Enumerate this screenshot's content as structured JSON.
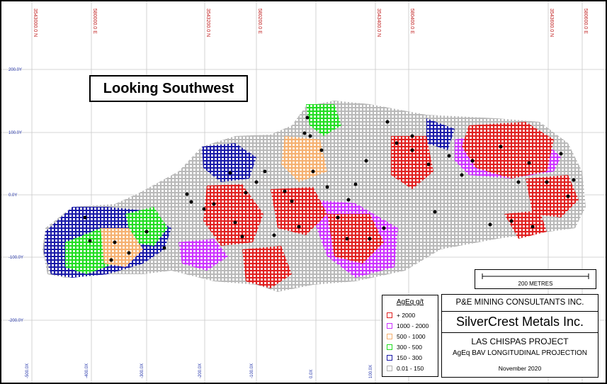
{
  "title_block": {
    "consultant": "P&E MINING CONSULTANTS INC.",
    "company": "SilverCrest Metals Inc.",
    "project": "LAS CHISPAS PROJECT",
    "projection": "AgEq BAV LONGITUDINAL PROJECTION",
    "date": "November 2020"
  },
  "view_label": "Looking Southwest",
  "scale_bar": {
    "label": "200 METRES",
    "length_m": 200
  },
  "legend": {
    "title": "AgEq g/t",
    "items": [
      {
        "label": "+ 2000",
        "color": "#e02020"
      },
      {
        "label": "1000 - 2000",
        "color": "#cc33ff"
      },
      {
        "label": "500 - 1000",
        "color": "#f5b070"
      },
      {
        "label": "300 - 500",
        "color": "#22dd22"
      },
      {
        "label": "150 - 300",
        "color": "#1a1aa8"
      },
      {
        "label": "0.01 - 150",
        "color": "#b0b0b0"
      }
    ]
  },
  "top_labels": [
    "3543000.0 N",
    "580000.0 E",
    "3543200.0 N",
    "580200.0 E",
    "3543400.0 N",
    "580400.0 E",
    "3543600.0 N",
    "580600.0 E"
  ],
  "left_labels": [
    "200.0Y",
    "100.0Y",
    "0.0Y",
    "-100.0Y",
    "-200.0Y"
  ],
  "bottom_labels": [
    "-500.0X",
    "-400.0X",
    "-300.0X",
    "-200.0X",
    "-100.0X",
    "0.0X",
    "100.0X"
  ]
}
